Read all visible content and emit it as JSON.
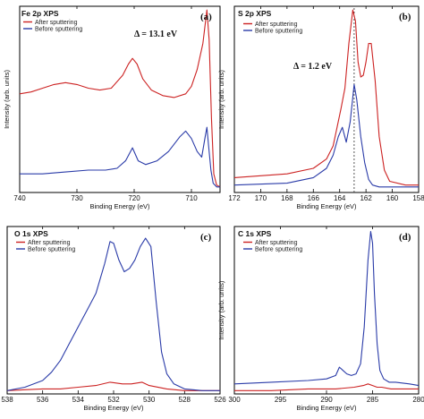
{
  "colors": {
    "after": "#cc2222",
    "before": "#2a3ba8"
  },
  "chart_data": [
    {
      "id": "a",
      "type": "line",
      "title": "Fe 2p XPS",
      "panel_label": "(a)",
      "xlabel": "Binding Energy (eV)",
      "ylabel": "Intensity (arb. units)",
      "xlim": [
        740,
        705
      ],
      "ylim": [
        0,
        1
      ],
      "xticks": [
        740,
        730,
        720,
        710
      ],
      "annotation": "Δ = 13.1 eV",
      "legend": [
        "After sputtering",
        "Before sputtering"
      ],
      "series": [
        {
          "name": "After sputtering",
          "color": "#cc2222",
          "x": [
            740,
            738,
            736,
            734,
            732,
            730,
            728,
            726,
            724,
            722,
            721,
            720.3,
            719.5,
            718.5,
            717,
            715,
            713,
            711,
            710,
            709,
            708,
            707.3,
            706.9,
            706.5,
            706.1,
            705.6,
            705
          ],
          "y": [
            0.53,
            0.54,
            0.56,
            0.58,
            0.59,
            0.58,
            0.56,
            0.55,
            0.56,
            0.63,
            0.69,
            0.72,
            0.69,
            0.61,
            0.55,
            0.52,
            0.51,
            0.53,
            0.57,
            0.66,
            0.8,
            0.98,
            0.82,
            0.4,
            0.1,
            0.04,
            0.03
          ]
        },
        {
          "name": "Before sputtering",
          "color": "#2a3ba8",
          "x": [
            740,
            736,
            732,
            728,
            725,
            723,
            721.5,
            720.3,
            719.3,
            718,
            716,
            714,
            712,
            711,
            710,
            709,
            708.2,
            707.6,
            707.3,
            707.0,
            706.6,
            706.2,
            705.6,
            705
          ],
          "y": [
            0.1,
            0.1,
            0.11,
            0.12,
            0.12,
            0.13,
            0.17,
            0.24,
            0.17,
            0.15,
            0.17,
            0.22,
            0.3,
            0.33,
            0.29,
            0.22,
            0.19,
            0.3,
            0.35,
            0.25,
            0.12,
            0.05,
            0.03,
            0.03
          ]
        }
      ]
    },
    {
      "id": "b",
      "type": "line",
      "title": "S 2p XPS",
      "panel_label": "(b)",
      "xlabel": "Binding Energy (eV)",
      "ylabel": "Intensity (arb. units)",
      "xlim": [
        172,
        158
      ],
      "ylim": [
        0,
        1
      ],
      "xticks": [
        172,
        170,
        168,
        166,
        164,
        162,
        160,
        158
      ],
      "annotation": "Δ = 1.2 eV",
      "dashed_line_x": 162.9,
      "legend": [
        "After sputtering",
        "Before sputtering"
      ],
      "series": [
        {
          "name": "After sputtering",
          "color": "#cc2222",
          "x": [
            172,
            170,
            168,
            166,
            165,
            164.5,
            164.2,
            163.9,
            163.6,
            163.3,
            163.0,
            162.8,
            162.6,
            162.4,
            162.2,
            162.0,
            161.8,
            161.6,
            161.3,
            161.0,
            160.6,
            160.2,
            159,
            158
          ],
          "y": [
            0.08,
            0.09,
            0.1,
            0.13,
            0.18,
            0.25,
            0.35,
            0.45,
            0.56,
            0.8,
            0.98,
            0.92,
            0.7,
            0.62,
            0.63,
            0.7,
            0.8,
            0.8,
            0.6,
            0.3,
            0.12,
            0.06,
            0.04,
            0.04
          ]
        },
        {
          "name": "Before sputtering",
          "color": "#2a3ba8",
          "x": [
            172,
            168,
            166,
            165,
            164.5,
            164.1,
            163.8,
            163.5,
            163.2,
            162.9,
            162.7,
            162.4,
            162.1,
            161.8,
            161.5,
            161,
            160,
            158
          ],
          "y": [
            0.04,
            0.05,
            0.08,
            0.13,
            0.2,
            0.3,
            0.35,
            0.27,
            0.38,
            0.58,
            0.5,
            0.3,
            0.16,
            0.07,
            0.04,
            0.03,
            0.03,
            0.03
          ]
        }
      ]
    },
    {
      "id": "c",
      "type": "line",
      "title": "O 1s XPS",
      "panel_label": "(c)",
      "xlabel": "Binding Energy (eV)",
      "ylabel": "",
      "xlim": [
        538,
        526
      ],
      "ylim": [
        0,
        1
      ],
      "xticks": [
        538,
        536,
        534,
        532,
        530,
        528,
        526
      ],
      "legend": [
        "After sputtering",
        "Before sputtering"
      ],
      "series": [
        {
          "name": "After sputtering",
          "color": "#cc2222",
          "x": [
            538,
            537,
            536,
            535,
            534,
            533,
            532.2,
            531.5,
            531,
            530.4,
            530,
            529,
            528,
            527,
            526
          ],
          "y": [
            0.02,
            0.025,
            0.03,
            0.03,
            0.04,
            0.05,
            0.07,
            0.06,
            0.06,
            0.07,
            0.05,
            0.03,
            0.02,
            0.02,
            0.02
          ]
        },
        {
          "name": "Before sputtering",
          "color": "#2a3ba8",
          "x": [
            538,
            537,
            536,
            535.5,
            535,
            534.5,
            534,
            533.5,
            533,
            532.5,
            532.2,
            532.0,
            531.7,
            531.4,
            531.1,
            530.8,
            530.5,
            530.2,
            529.9,
            529.6,
            529.3,
            529.0,
            528.6,
            528,
            527,
            526
          ],
          "y": [
            0.02,
            0.04,
            0.08,
            0.13,
            0.2,
            0.3,
            0.4,
            0.5,
            0.6,
            0.78,
            0.91,
            0.9,
            0.8,
            0.73,
            0.75,
            0.8,
            0.88,
            0.93,
            0.88,
            0.55,
            0.25,
            0.12,
            0.06,
            0.03,
            0.02,
            0.02
          ]
        }
      ]
    },
    {
      "id": "d",
      "type": "line",
      "title": "C 1s XPS",
      "panel_label": "(d)",
      "xlabel": "Binding Energy (eV)",
      "ylabel": "Intensity (arb. units)",
      "xlim": [
        300,
        280
      ],
      "ylim": [
        0,
        1
      ],
      "xticks": [
        300,
        295,
        290,
        285,
        280
      ],
      "legend": [
        "After sputtering",
        "Before sputtering"
      ],
      "series": [
        {
          "name": "After sputtering",
          "color": "#cc2222",
          "x": [
            300,
            296,
            292,
            289,
            287,
            286,
            285.5,
            285,
            284.5,
            284,
            283,
            282,
            280
          ],
          "y": [
            0.02,
            0.02,
            0.03,
            0.03,
            0.04,
            0.05,
            0.06,
            0.05,
            0.04,
            0.04,
            0.03,
            0.03,
            0.03
          ]
        },
        {
          "name": "Before sputtering",
          "color": "#2a3ba8",
          "x": [
            300,
            296,
            292,
            290,
            289,
            288.6,
            288.2,
            287.8,
            287.3,
            286.8,
            286.3,
            285.9,
            285.5,
            285.2,
            285.0,
            284.8,
            284.5,
            284.2,
            283.8,
            283.2,
            282.5,
            281,
            280
          ],
          "y": [
            0.06,
            0.07,
            0.08,
            0.09,
            0.11,
            0.16,
            0.14,
            0.12,
            0.11,
            0.12,
            0.18,
            0.4,
            0.8,
            0.97,
            0.9,
            0.6,
            0.3,
            0.14,
            0.09,
            0.07,
            0.07,
            0.06,
            0.05
          ]
        }
      ]
    }
  ]
}
